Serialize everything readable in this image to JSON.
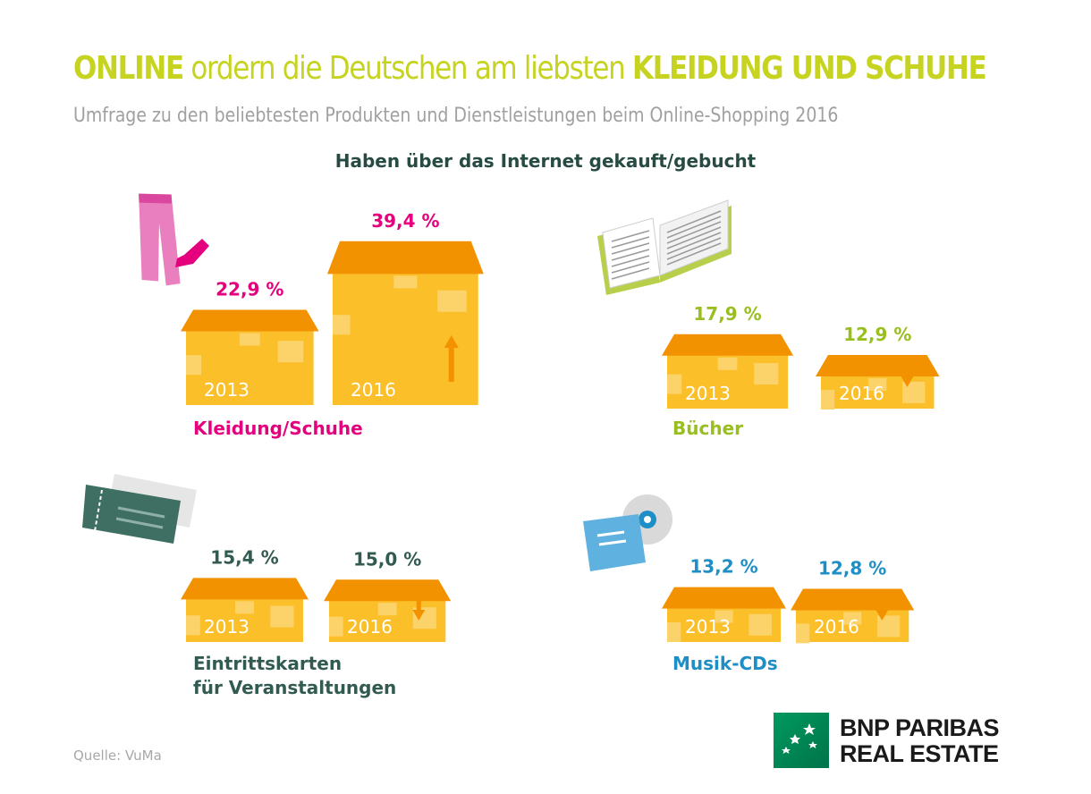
{
  "header": {
    "title_online": "ONLINE",
    "title_middle": " ordern die Deutschen am liebsten ",
    "title_highlight": "KLEIDUNG UND SCHUHE",
    "subtitle": "Umfrage zu den beliebtesten Produkten und Dienstleistungen beim Online-Shopping 2016",
    "chart_heading": "Haben über das Internet gekauft/gebucht"
  },
  "chart_data": {
    "type": "bar",
    "unit": "%",
    "categories": [
      "2013",
      "2016"
    ],
    "groups": [
      {
        "name_lines": [
          "Kleidung/Schuhe"
        ],
        "values": [
          22.9,
          39.4
        ],
        "labels": [
          "22,9 %",
          "39,4 %"
        ],
        "trend": "up",
        "color": "#e5007e",
        "icon": "trousers-icon"
      },
      {
        "name_lines": [
          "Bücher"
        ],
        "values": [
          17.9,
          12.9
        ],
        "labels": [
          "17,9 %",
          "12,9 %"
        ],
        "trend": "down",
        "color": "#99bf1f",
        "icon": "open-book-icon"
      },
      {
        "name_lines": [
          "Eintrittskarten",
          "für Veranstaltungen"
        ],
        "values": [
          15.4,
          15.0
        ],
        "labels": [
          "15,4 %",
          "15,0 %"
        ],
        "trend": "down",
        "color": "#315b51",
        "icon": "tickets-icon"
      },
      {
        "name_lines": [
          "Musik-CDs"
        ],
        "values": [
          13.2,
          12.8
        ],
        "labels": [
          "13,2 %",
          "12,8 %"
        ],
        "trend": "down",
        "color": "#1e8fc6",
        "icon": "music-cd-icon"
      }
    ]
  },
  "footer": {
    "source": "Quelle: VuMa",
    "logo_line1": "BNP PARIBAS",
    "logo_line2": "REAL ESTATE"
  },
  "colors": {
    "box_body": "#fbbf29",
    "box_lid": "#f39200",
    "box_year_text": "#ffffff",
    "title_color": "#c6d321"
  }
}
